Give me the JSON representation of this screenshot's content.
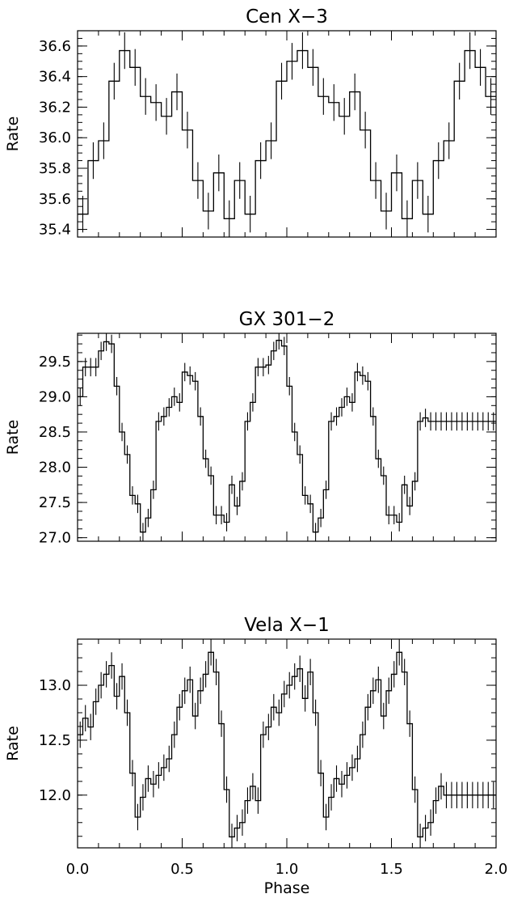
{
  "chart_data": [
    {
      "type": "line",
      "title": "Cen X−3",
      "xlabel": "",
      "ylabel": "Rate",
      "xlim": [
        0.0,
        2.0
      ],
      "ylim": [
        35.35,
        36.7
      ],
      "ytick_labels": [
        "35.4",
        "35.6",
        "35.8",
        "36.0",
        "36.2",
        "36.4",
        "36.6"
      ],
      "xtick_labels": [],
      "grid": false,
      "x_bin_start": [
        0.0,
        0.05,
        0.1,
        0.15,
        0.2,
        0.25,
        0.3,
        0.35,
        0.4,
        0.45,
        0.5,
        0.55,
        0.6,
        0.65,
        0.7,
        0.75,
        0.8,
        0.85,
        0.9,
        0.95,
        1.0,
        1.05,
        1.1,
        1.15,
        1.2,
        1.25,
        1.3,
        1.35,
        1.4,
        1.45,
        1.5,
        1.55,
        1.6,
        1.65,
        1.7,
        1.75,
        1.8,
        1.85,
        1.9,
        1.95
      ],
      "y": [
        35.5,
        35.85,
        35.98,
        36.37,
        36.57,
        36.46,
        36.27,
        36.23,
        36.14,
        36.3,
        36.05,
        35.72,
        35.52,
        35.77,
        35.47,
        35.72,
        35.5,
        35.85,
        35.98,
        36.37,
        36.5,
        36.57,
        36.46,
        36.27,
        36.23,
        36.14,
        36.3,
        36.05,
        35.72,
        35.52,
        35.77,
        35.47,
        35.72,
        35.5,
        35.85,
        35.98,
        36.37,
        36.57,
        36.46,
        36.27
      ],
      "yerr": 0.12
    },
    {
      "type": "line",
      "title": "GX 301−2",
      "xlabel": "",
      "ylabel": "Rate",
      "xlim": [
        0.0,
        2.0
      ],
      "ylim": [
        26.95,
        29.9
      ],
      "ytick_labels": [
        "27.0",
        "27.5",
        "28.0",
        "28.5",
        "29.0",
        "29.5"
      ],
      "xtick_labels": [],
      "grid": false,
      "x_bin_start": [
        0.0,
        0.025,
        0.05,
        0.075,
        0.1,
        0.125,
        0.15,
        0.175,
        0.2,
        0.225,
        0.25,
        0.275,
        0.3,
        0.325,
        0.35,
        0.375,
        0.4,
        0.425,
        0.45,
        0.475,
        0.5,
        0.525,
        0.55,
        0.575,
        0.6,
        0.625,
        0.65,
        0.675,
        0.7,
        0.725,
        0.75,
        0.775,
        0.8,
        0.825,
        0.85,
        0.875,
        0.9,
        0.925,
        0.95,
        0.975,
        1.0,
        1.025,
        1.05,
        1.075,
        1.1,
        1.125,
        1.15,
        1.175,
        1.2,
        1.225,
        1.25,
        1.275,
        1.3,
        1.325,
        1.35,
        1.375,
        1.4,
        1.425,
        1.45,
        1.475,
        1.5,
        1.525,
        1.55,
        1.575,
        1.6,
        1.625,
        1.65,
        1.675,
        1.7,
        1.725,
        1.75,
        1.775,
        1.8,
        1.825,
        1.85,
        1.875,
        1.9,
        1.925,
        1.95,
        1.975
      ],
      "y": [
        29.0,
        29.42,
        29.42,
        29.42,
        29.65,
        29.78,
        29.75,
        29.15,
        28.5,
        28.18,
        27.6,
        27.48,
        27.08,
        27.28,
        27.68,
        28.65,
        28.72,
        28.85,
        29.0,
        28.92,
        29.35,
        29.3,
        29.22,
        28.72,
        28.12,
        27.88,
        27.32,
        27.32,
        27.22,
        27.75,
        27.45,
        27.8,
        28.65,
        28.92,
        29.42,
        29.42,
        29.45,
        29.65,
        29.8,
        29.72,
        29.15,
        28.5,
        28.18,
        27.6,
        27.48,
        27.08,
        27.28,
        27.68,
        28.65,
        28.72,
        28.85,
        29.0,
        28.92,
        29.35,
        29.3,
        29.22,
        28.72,
        28.12,
        27.88,
        27.32,
        27.32,
        27.22,
        27.75,
        27.45,
        27.8,
        28.65,
        28.7,
        28.65,
        28.65,
        28.65,
        28.65,
        28.65,
        28.65,
        28.65,
        28.65,
        28.65,
        28.65,
        28.65,
        28.65,
        28.65
      ],
      "yerr": 0.13
    },
    {
      "type": "line",
      "title": "Vela X−1",
      "xlabel": "Phase",
      "ylabel": "Rate",
      "xlim": [
        0.0,
        2.0
      ],
      "ylim": [
        11.52,
        13.42
      ],
      "ytick_labels": [
        "12.0",
        "12.5",
        "13.0"
      ],
      "xtick_labels": [
        "0.0",
        "0.5",
        "1.0",
        "1.5",
        "2.0"
      ],
      "grid": false,
      "x_bin_start": [
        0.0,
        0.025,
        0.05,
        0.075,
        0.1,
        0.125,
        0.15,
        0.175,
        0.2,
        0.225,
        0.25,
        0.275,
        0.3,
        0.325,
        0.35,
        0.375,
        0.4,
        0.425,
        0.45,
        0.475,
        0.5,
        0.525,
        0.55,
        0.575,
        0.6,
        0.625,
        0.65,
        0.675,
        0.7,
        0.725,
        0.75,
        0.775,
        0.8,
        0.825,
        0.85,
        0.875,
        0.9,
        0.925,
        0.95,
        0.975,
        1.0,
        1.025,
        1.05,
        1.075,
        1.1,
        1.125,
        1.15,
        1.175,
        1.2,
        1.225,
        1.25,
        1.275,
        1.3,
        1.325,
        1.35,
        1.375,
        1.4,
        1.425,
        1.45,
        1.475,
        1.5,
        1.525,
        1.55,
        1.575,
        1.6,
        1.625,
        1.65,
        1.675,
        1.7,
        1.725,
        1.75,
        1.775,
        1.8,
        1.825,
        1.85,
        1.875,
        1.9,
        1.925,
        1.95,
        1.975
      ],
      "y": [
        12.55,
        12.7,
        12.62,
        12.85,
        13.0,
        13.1,
        13.18,
        12.9,
        13.08,
        12.75,
        12.2,
        11.8,
        11.98,
        12.15,
        12.1,
        12.18,
        12.25,
        12.33,
        12.55,
        12.8,
        12.95,
        13.05,
        12.72,
        12.95,
        13.1,
        13.3,
        13.12,
        12.65,
        12.05,
        11.62,
        11.7,
        11.75,
        11.95,
        12.08,
        11.95,
        12.55,
        12.62,
        12.8,
        12.75,
        12.92,
        13.0,
        13.08,
        13.15,
        12.88,
        13.12,
        12.75,
        12.2,
        11.8,
        11.98,
        12.15,
        12.1,
        12.18,
        12.25,
        12.33,
        12.55,
        12.8,
        12.95,
        13.05,
        12.72,
        12.95,
        13.1,
        13.3,
        13.12,
        12.65,
        12.05,
        11.62,
        11.7,
        11.75,
        11.95,
        12.08,
        12.0,
        12.0,
        12.0,
        12.0,
        12.0,
        12.0,
        12.0,
        12.0,
        12.0,
        12.0
      ],
      "yerr": 0.12
    }
  ]
}
